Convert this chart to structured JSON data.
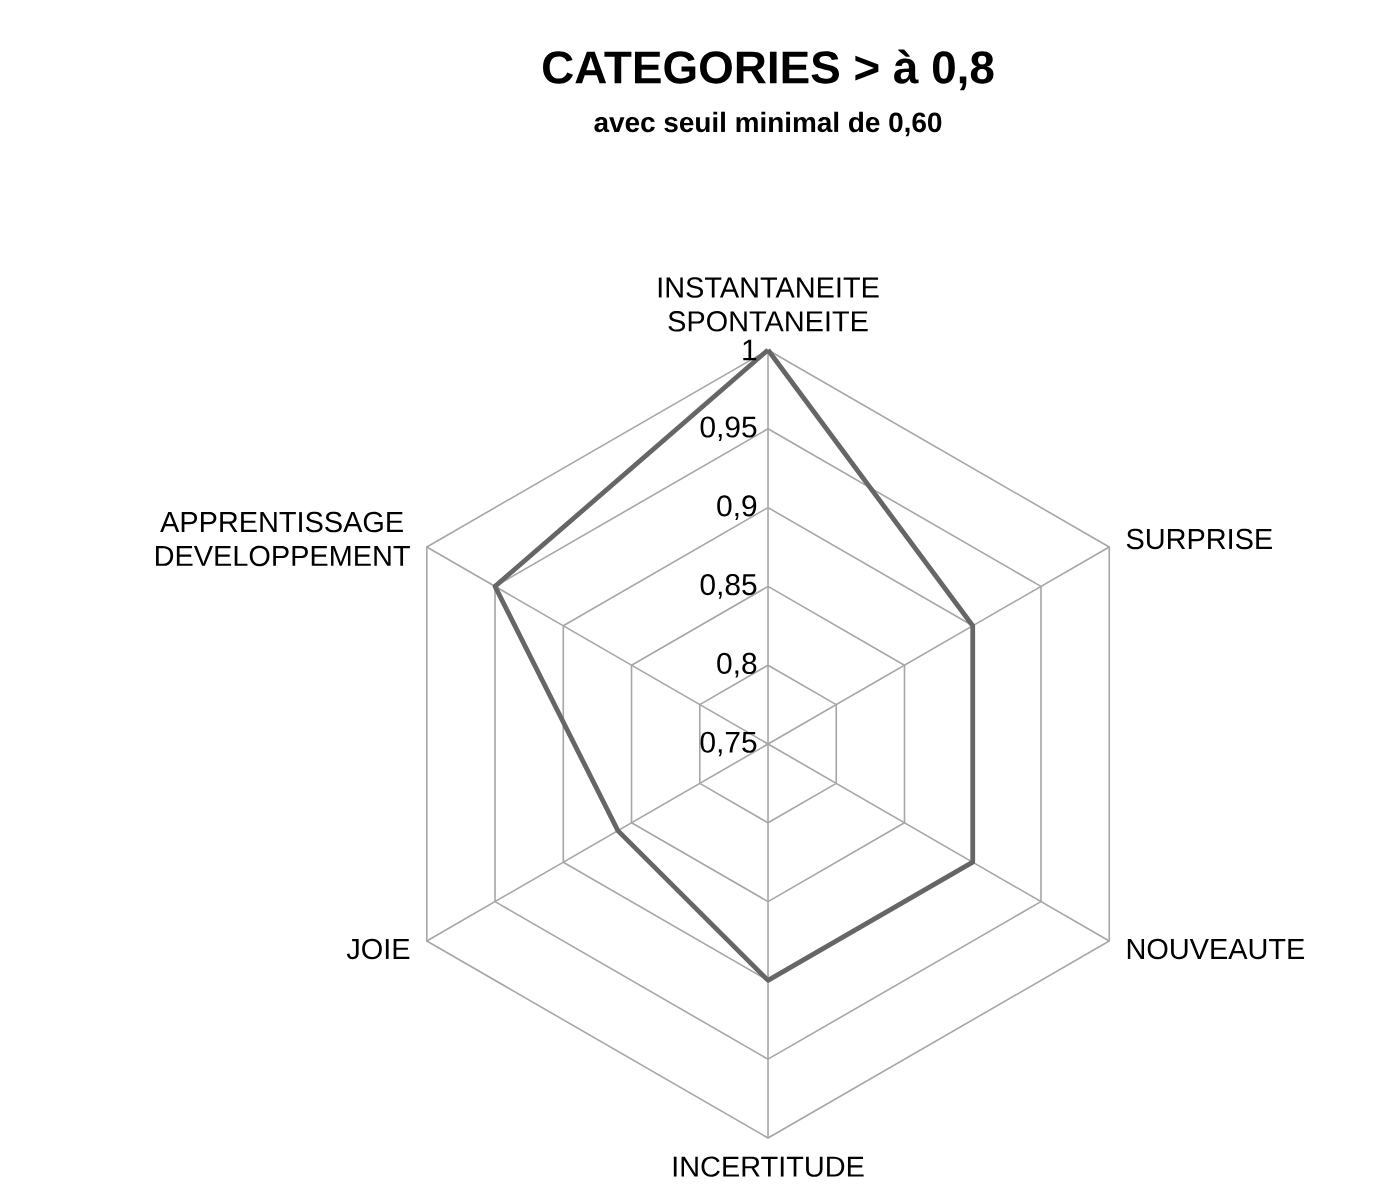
{
  "chart_data": {
    "type": "radar",
    "title": "CATEGORIES > à 0,8",
    "subtitle": "avec seuil minimal de 0,60",
    "categories": [
      "INSTANTANEITE SPONTANEITE",
      "SURPRISE",
      "NOUVEAUTE",
      "INCERTITUDE",
      "JOIE",
      "APPRENTISSAGE DEVELOPPEMENT"
    ],
    "series": [
      {
        "color": "#666666",
        "values": [
          1,
          0.9,
          0.9,
          0.9,
          0.86,
          0.95
        ]
      }
    ],
    "ylim": [
      0.75,
      1
    ],
    "yticks": [
      {
        "value": 0.75,
        "label": "0,75"
      },
      {
        "value": 0.8,
        "label": "0,8"
      },
      {
        "value": 0.85,
        "label": "0,85"
      },
      {
        "value": 0.9,
        "label": "0,9"
      },
      {
        "value": 0.95,
        "label": "0,95"
      },
      1
    ],
    "grid": true
  }
}
